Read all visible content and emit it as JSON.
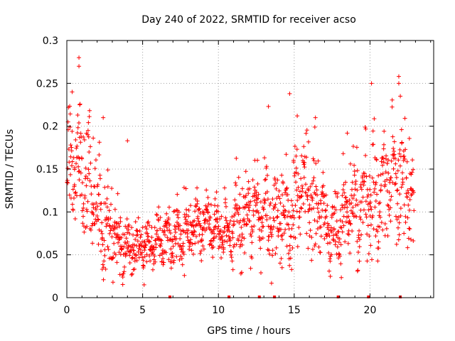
{
  "chart_data": {
    "type": "scatter",
    "title": "Day 240 of 2022, SRMTID for receiver acso",
    "xlabel": "GPS time / hours",
    "ylabel": "SRMTID / TECUs",
    "xlim": [
      0,
      24.2
    ],
    "ylim": [
      0,
      0.3
    ],
    "grid": true,
    "marker": "+",
    "colors": {
      "points": "#ff0000",
      "grid": "#a0a0a0",
      "axis": "#000000"
    },
    "x_ticks": [
      {
        "value": 0,
        "label": "0"
      },
      {
        "value": 5,
        "label": "5"
      },
      {
        "value": 10,
        "label": "10"
      },
      {
        "value": 15,
        "label": "15"
      },
      {
        "value": 20,
        "label": "20"
      }
    ],
    "y_ticks": [
      {
        "value": 0,
        "label": "0"
      },
      {
        "value": 0.05,
        "label": "0.05"
      },
      {
        "value": 0.1,
        "label": "0.1"
      },
      {
        "value": 0.15,
        "label": "0.15"
      },
      {
        "value": 0.2,
        "label": "0.2"
      },
      {
        "value": 0.25,
        "label": "0.25"
      },
      {
        "value": 0.3,
        "label": "0.3"
      }
    ],
    "gap_markers_x": [
      6.8,
      10.7,
      12.7,
      13.7,
      17.9,
      19.9,
      22.0
    ],
    "trend": [
      [
        0.0,
        0.14
      ],
      [
        0.5,
        0.16
      ],
      [
        1.0,
        0.15
      ],
      [
        1.5,
        0.13
      ],
      [
        2.0,
        0.1
      ],
      [
        2.5,
        0.085
      ],
      [
        3.0,
        0.075
      ],
      [
        3.5,
        0.062
      ],
      [
        4.0,
        0.058
      ],
      [
        4.5,
        0.058
      ],
      [
        5.0,
        0.055
      ],
      [
        5.5,
        0.058
      ],
      [
        6.0,
        0.065
      ],
      [
        6.5,
        0.072
      ],
      [
        7.0,
        0.075
      ],
      [
        7.5,
        0.075
      ],
      [
        8.0,
        0.078
      ],
      [
        8.5,
        0.085
      ],
      [
        9.0,
        0.085
      ],
      [
        9.5,
        0.082
      ],
      [
        10.0,
        0.075
      ],
      [
        10.5,
        0.08
      ],
      [
        11.0,
        0.085
      ],
      [
        11.5,
        0.09
      ],
      [
        12.0,
        0.095
      ],
      [
        12.5,
        0.1
      ],
      [
        13.0,
        0.1
      ],
      [
        13.5,
        0.095
      ],
      [
        14.0,
        0.09
      ],
      [
        14.5,
        0.088
      ],
      [
        15.0,
        0.1
      ],
      [
        15.5,
        0.13
      ],
      [
        16.0,
        0.12
      ],
      [
        16.5,
        0.11
      ],
      [
        17.0,
        0.09
      ],
      [
        17.5,
        0.08
      ],
      [
        18.0,
        0.085
      ],
      [
        18.5,
        0.1
      ],
      [
        19.0,
        0.11
      ],
      [
        19.5,
        0.11
      ],
      [
        20.0,
        0.11
      ],
      [
        20.5,
        0.12
      ],
      [
        21.0,
        0.13
      ],
      [
        21.5,
        0.14
      ],
      [
        22.0,
        0.14
      ],
      [
        22.5,
        0.13
      ],
      [
        23.0,
        0.11
      ]
    ],
    "spread": [
      [
        0.0,
        0.04
      ],
      [
        1.0,
        0.045
      ],
      [
        2.0,
        0.04
      ],
      [
        3.0,
        0.03
      ],
      [
        4.0,
        0.02
      ],
      [
        5.0,
        0.018
      ],
      [
        6.0,
        0.02
      ],
      [
        7.0,
        0.022
      ],
      [
        9.0,
        0.025
      ],
      [
        10.0,
        0.022
      ],
      [
        12.0,
        0.03
      ],
      [
        13.5,
        0.035
      ],
      [
        15.0,
        0.035
      ],
      [
        16.0,
        0.04
      ],
      [
        17.5,
        0.025
      ],
      [
        19.0,
        0.035
      ],
      [
        21.0,
        0.045
      ],
      [
        22.0,
        0.05
      ],
      [
        23.0,
        0.035
      ]
    ],
    "point_count": 1400,
    "outliers": [
      [
        0.35,
        0.24
      ],
      [
        0.8,
        0.28
      ],
      [
        0.8,
        0.27
      ],
      [
        0.85,
        0.225
      ],
      [
        4.0,
        0.183
      ],
      [
        14.7,
        0.238
      ],
      [
        13.3,
        0.223
      ],
      [
        21.9,
        0.258
      ],
      [
        21.9,
        0.25
      ],
      [
        20.1,
        0.25
      ],
      [
        22.0,
        0.235
      ],
      [
        16.4,
        0.21
      ],
      [
        18.5,
        0.192
      ],
      [
        15.2,
        0.212
      ],
      [
        2.4,
        0.21
      ],
      [
        1.4,
        0.195
      ],
      [
        14.2,
        0.035
      ],
      [
        5.1,
        0.015
      ],
      [
        19.2,
        0.032
      ],
      [
        3.5,
        0.027
      ]
    ]
  }
}
